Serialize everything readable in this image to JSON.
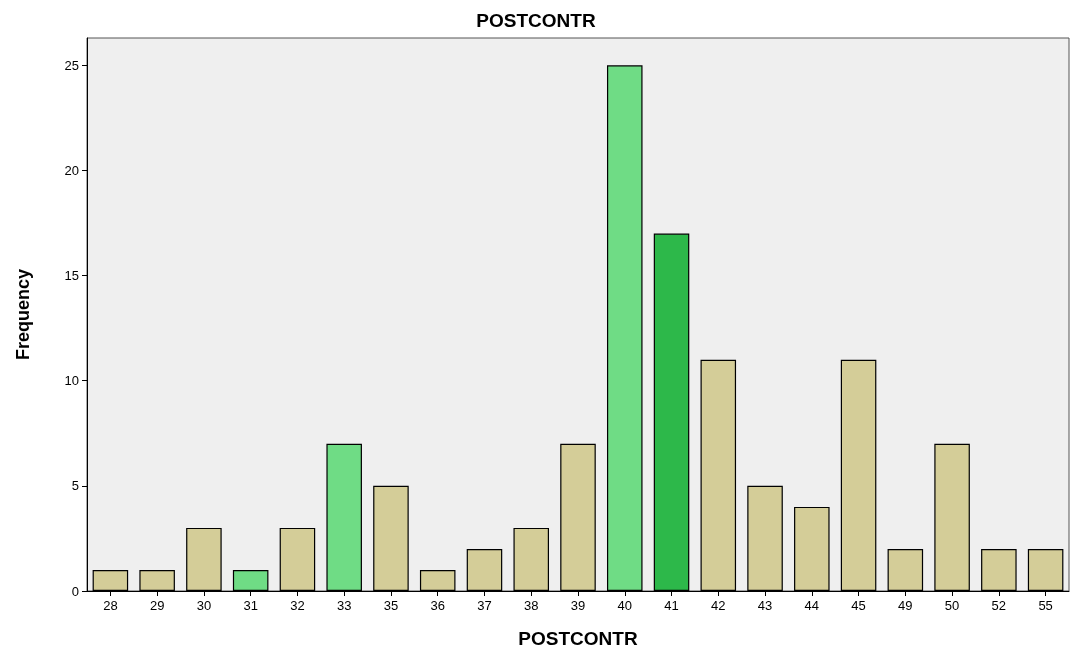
{
  "chart_data": {
    "type": "bar",
    "title": "POSTCONTR",
    "xlabel": "POSTCONTR",
    "ylabel": "Frequency",
    "categories": [
      "28",
      "29",
      "30",
      "31",
      "32",
      "33",
      "35",
      "36",
      "37",
      "38",
      "39",
      "40",
      "41",
      "42",
      "43",
      "44",
      "45",
      "49",
      "50",
      "52",
      "55"
    ],
    "values": [
      1,
      1,
      3,
      1,
      3,
      7,
      5,
      1,
      2,
      3,
      7,
      25,
      17,
      11,
      5,
      4,
      11,
      2,
      7,
      2,
      2
    ],
    "colors": [
      "#d4cd98",
      "#d4cd98",
      "#d4cd98",
      "#6fdc85",
      "#d4cd98",
      "#6fdc85",
      "#d4cd98",
      "#d4cd98",
      "#d4cd98",
      "#d4cd98",
      "#d4cd98",
      "#6fdc85",
      "#2db84a",
      "#d4cd98",
      "#d4cd98",
      "#d4cd98",
      "#d4cd98",
      "#d4cd98",
      "#d4cd98",
      "#d4cd98",
      "#d4cd98"
    ],
    "ylim": [
      0,
      26.3
    ],
    "yticks": [
      0,
      5,
      10,
      15,
      20,
      25
    ],
    "grid": false
  }
}
